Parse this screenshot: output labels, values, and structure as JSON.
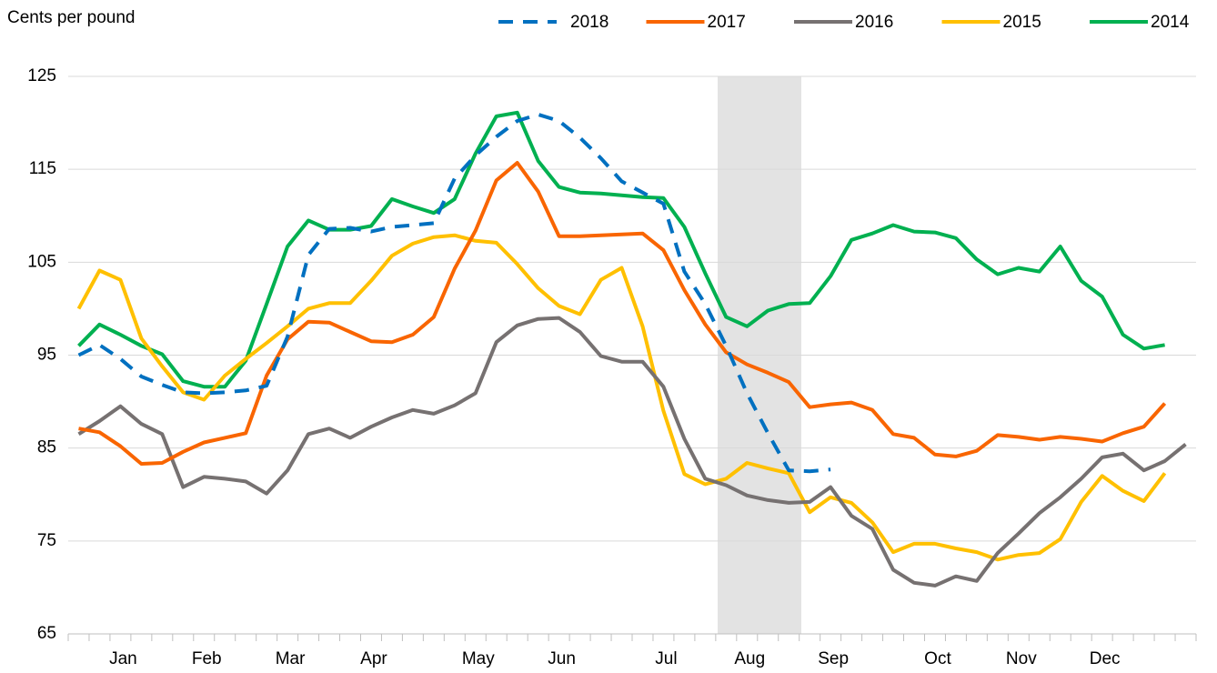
{
  "chart_data": {
    "type": "line",
    "y_label": "Cents per pound",
    "categories": [
      null,
      null,
      "Jan",
      null,
      null,
      null,
      "Feb",
      null,
      null,
      null,
      "Mar",
      null,
      null,
      null,
      "Apr",
      null,
      null,
      null,
      null,
      "May",
      null,
      null,
      null,
      "Jun",
      null,
      null,
      null,
      null,
      "Jul",
      null,
      null,
      null,
      "Aug",
      null,
      null,
      null,
      "Sep",
      null,
      null,
      null,
      null,
      "Oct",
      null,
      null,
      null,
      "Nov",
      null,
      null,
      null,
      "Dec",
      null,
      null,
      null,
      null
    ],
    "ylim": [
      65,
      125
    ],
    "yticks": [
      65,
      75,
      85,
      95,
      105,
      115,
      125
    ],
    "grid": true,
    "series": [
      {
        "name": "2018",
        "color": "#0070c0",
        "dashed": true,
        "values": [
          95,
          96.1,
          94.6,
          92.7,
          91.8,
          91,
          90.9,
          91,
          91.2,
          91.7,
          97,
          105.8,
          108.6,
          108.7,
          108.3,
          108.8,
          109,
          109.2,
          114,
          116.5,
          118.5,
          120.2,
          120.9,
          120.2,
          118.4,
          116.2,
          113.7,
          112.5,
          111.3,
          104,
          100.5,
          96,
          90.9,
          86.6,
          82.6,
          82.5,
          82.7,
          null,
          null,
          null,
          null,
          null,
          null,
          null,
          null,
          null,
          null,
          null,
          null,
          null,
          null,
          null,
          null,
          null
        ]
      },
      {
        "name": "2017",
        "color": "#f96500",
        "values": [
          87.1,
          86.7,
          85.2,
          83.3,
          83.4,
          84.6,
          85.6,
          86.1,
          86.6,
          92.8,
          96.7,
          98.6,
          98.5,
          97.5,
          96.5,
          96.4,
          97.2,
          99.1,
          104.3,
          108.4,
          113.8,
          115.7,
          112.6,
          107.8,
          107.8,
          107.9,
          108,
          108.1,
          106.3,
          102,
          98.3,
          95.3,
          94,
          93.1,
          92.1,
          89.4,
          89.7,
          89.9,
          89.1,
          86.5,
          86.1,
          84.3,
          84.1,
          84.7,
          86.4,
          86.2,
          85.9,
          86.2,
          86,
          85.7,
          86.6,
          87.3,
          89.8,
          null
        ]
      },
      {
        "name": "2016",
        "color": "#767171",
        "values": [
          86.5,
          87.9,
          89.5,
          87.6,
          86.5,
          80.8,
          81.9,
          81.7,
          81.4,
          80.1,
          82.6,
          86.5,
          87.1,
          86.1,
          87.3,
          88.3,
          89.1,
          88.7,
          89.6,
          90.9,
          96.4,
          98.2,
          98.9,
          99,
          97.5,
          94.9,
          94.3,
          94.3,
          91.6,
          86,
          81.7,
          81,
          79.9,
          79.4,
          79.1,
          79.2,
          80.8,
          77.7,
          76.3,
          71.9,
          70.5,
          70.2,
          71.2,
          70.7,
          73.7,
          75.8,
          78,
          79.7,
          81.7,
          84,
          84.4,
          82.6,
          83.6,
          85.4
        ]
      },
      {
        "name": "2015",
        "color": "#ffc000",
        "values": [
          100,
          104.1,
          103.1,
          96.8,
          93.8,
          91,
          90.2,
          92.8,
          94.6,
          96.3,
          98.1,
          100,
          100.6,
          100.6,
          103,
          105.7,
          107,
          107.7,
          107.9,
          107.3,
          107.1,
          104.8,
          102.2,
          100.3,
          99.4,
          103.1,
          104.4,
          98.1,
          89,
          82.2,
          81.1,
          81.7,
          83.4,
          82.8,
          82.3,
          78.1,
          79.7,
          79.1,
          77,
          73.8,
          74.7,
          74.7,
          74.2,
          73.8,
          73,
          73.5,
          73.7,
          75.2,
          79.2,
          82,
          80.4,
          79.3,
          82.3,
          null
        ]
      },
      {
        "name": "2014",
        "color": "#00b050",
        "values": [
          96,
          98.3,
          97.2,
          96,
          95.1,
          92.2,
          91.6,
          91.6,
          94.4,
          100.5,
          106.7,
          109.5,
          108.5,
          108.5,
          108.9,
          111.8,
          111,
          110.3,
          111.8,
          116.7,
          120.7,
          121.1,
          115.9,
          113.1,
          112.5,
          112.4,
          112.2,
          112,
          111.9,
          108.8,
          103.8,
          99.1,
          98.1,
          99.8,
          100.5,
          100.6,
          103.5,
          107.4,
          108.1,
          109,
          108.3,
          108.2,
          107.6,
          105.3,
          103.7,
          104.4,
          104,
          106.7,
          103,
          101.3,
          97.2,
          95.7,
          96.1,
          null
        ]
      }
    ]
  }
}
